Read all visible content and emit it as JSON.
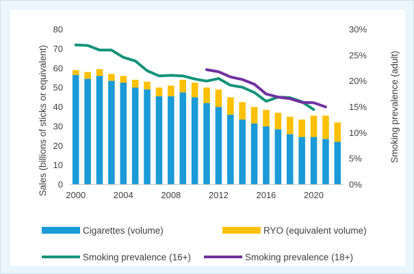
{
  "chart_data": {
    "type": "bar",
    "stacked": true,
    "x": [
      2000,
      2001,
      2002,
      2003,
      2004,
      2005,
      2006,
      2007,
      2008,
      2009,
      2010,
      2011,
      2012,
      2013,
      2014,
      2015,
      2016,
      2017,
      2018,
      2019,
      2020,
      2021,
      2022
    ],
    "x_ticks": [
      "2000",
      "2004",
      "2008",
      "2012",
      "2016",
      "2020"
    ],
    "ylabel": "Sales (billions of sticks or equivalent)",
    "ylabel_right": "Smoking prevalence (adult)",
    "ylim": [
      0,
      80
    ],
    "y_ticks": [
      "0",
      "10",
      "20",
      "30",
      "40",
      "50",
      "60",
      "70",
      "80"
    ],
    "ylim_right": [
      0,
      30
    ],
    "y_ticks_right": [
      "0%",
      "5%",
      "10%",
      "15%",
      "20%",
      "25%",
      "30%"
    ],
    "grid": false,
    "legend_position": "bottom",
    "series": [
      {
        "name": "Cigarettes (volume)",
        "type": "bar",
        "axis": "left",
        "color": "#1a9ad6",
        "values": [
          56.5,
          54.5,
          56.0,
          53.5,
          52.5,
          50.0,
          49.0,
          45.5,
          45.5,
          47.5,
          45.0,
          42.0,
          40.0,
          36.0,
          33.5,
          31.5,
          30.0,
          28.5,
          26.0,
          24.5,
          24.5,
          23.5,
          22.0
        ]
      },
      {
        "name": "RYO (equivalent volume)",
        "type": "bar",
        "axis": "left",
        "color": "#ffc000",
        "values": [
          2.5,
          3.5,
          3.5,
          3.5,
          3.5,
          4.0,
          4.0,
          4.5,
          5.5,
          6.5,
          7.5,
          8.0,
          9.0,
          9.0,
          9.0,
          8.5,
          8.5,
          8.5,
          9.0,
          9.0,
          11.0,
          12.0,
          10.0
        ]
      },
      {
        "name": "Smoking prevalence (16+)",
        "type": "line",
        "axis": "right",
        "color": "#13937a",
        "x": [
          2000,
          2001,
          2002,
          2003,
          2004,
          2005,
          2006,
          2007,
          2008,
          2009,
          2010,
          2011,
          2012,
          2013,
          2014,
          2015,
          2016,
          2017,
          2018,
          2019,
          2020
        ],
        "values": [
          27.0,
          26.9,
          26.0,
          26.0,
          24.6,
          23.9,
          22.0,
          21.0,
          21.1,
          21.0,
          20.4,
          20.0,
          20.5,
          19.2,
          18.8,
          17.8,
          16.1,
          16.9,
          16.8,
          16.0,
          14.5
        ]
      },
      {
        "name": "Smoking prevalence (18+)",
        "type": "line",
        "axis": "right",
        "color": "#7030a0",
        "x": [
          2011,
          2012,
          2013,
          2014,
          2015,
          2016,
          2017,
          2018,
          2019,
          2020,
          2021
        ],
        "values": [
          22.2,
          21.8,
          20.8,
          20.3,
          19.4,
          17.5,
          16.9,
          16.6,
          15.9,
          15.8,
          15.0
        ]
      }
    ]
  }
}
